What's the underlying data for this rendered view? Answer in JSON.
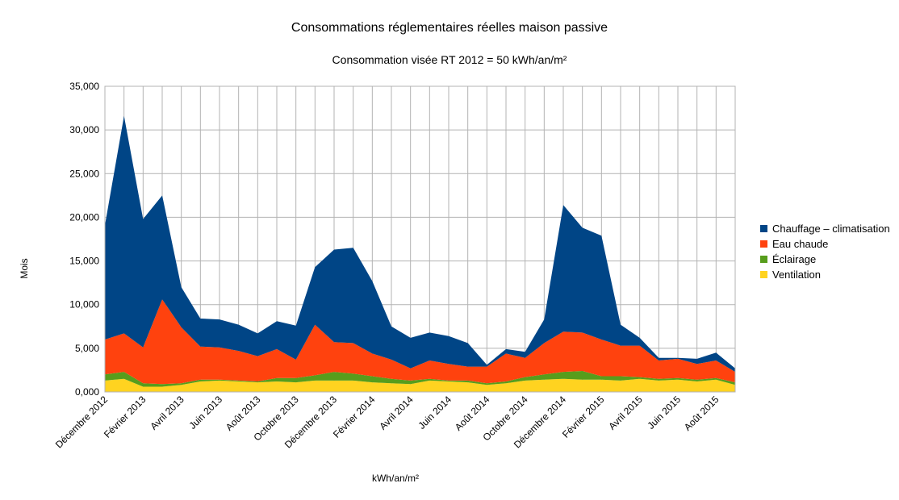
{
  "chart_data": {
    "type": "area",
    "stacked": true,
    "title": "Consommations réglementaires réelles maison passive",
    "subtitle": "Consommation visée RT 2012 = 50 kWh/an/m²",
    "xlabel": "kWh/an/m²",
    "ylabel": "Mois",
    "ylim": [
      0,
      35000
    ],
    "yticks": [
      "0,000",
      "5,000",
      "10,000",
      "15,000",
      "20,000",
      "25,000",
      "30,000",
      "35,000"
    ],
    "grid": true,
    "legend_position": "right",
    "x": [
      "Décembre 2012",
      "Janvier 2013",
      "Février 2013",
      "Mars 2013",
      "Avril 2013",
      "Mai 2013",
      "Juin 2013",
      "Juillet 2013",
      "Août 2013",
      "Septembre 2013",
      "Octobre 2013",
      "Novembre 2013",
      "Décembre 2013",
      "Janvier 2014",
      "Février 2014",
      "Mars 2014",
      "Avril 2014",
      "Mai 2014",
      "Juin 2014",
      "Juillet 2014",
      "Août 2014",
      "Septembre 2014",
      "Octobre 2014",
      "Novembre 2014",
      "Décembre 2014",
      "Janvier 2015",
      "Février 2015",
      "Mars 2015",
      "Avril 2015",
      "Mai 2015",
      "Juin 2015",
      "Juillet 2015",
      "Août 2015",
      "Septembre 2015"
    ],
    "xtick_labels": [
      "Décembre 2012",
      "Février 2013",
      "Avril 2013",
      "Juin 2013",
      "Août 2013",
      "Octobre 2013",
      "Décembre 2013",
      "Février 2014",
      "Avril 2014",
      "Juin 2014",
      "Août 2014",
      "Octobre 2014",
      "Décembre 2014",
      "Février 2015",
      "Avril 2015",
      "Juin 2015",
      "Août 2015"
    ],
    "series": [
      {
        "name": "Ventilation",
        "color": "#ffd320",
        "values": [
          1300,
          1500,
          600,
          600,
          800,
          1200,
          1300,
          1200,
          1100,
          1200,
          1100,
          1300,
          1300,
          1300,
          1100,
          1000,
          900,
          1300,
          1200,
          1100,
          800,
          1000,
          1300,
          1400,
          1500,
          1400,
          1400,
          1300,
          1500,
          1300,
          1400,
          1200,
          1400,
          800
        ]
      },
      {
        "name": "Éclairage",
        "color": "#579d1c",
        "values": [
          700,
          800,
          400,
          300,
          200,
          200,
          100,
          100,
          100,
          400,
          500,
          600,
          1000,
          800,
          700,
          500,
          400,
          200,
          100,
          200,
          200,
          200,
          400,
          600,
          800,
          1000,
          400,
          500,
          200,
          200,
          200,
          200,
          200,
          300
        ]
      },
      {
        "name": "Eau chaude",
        "color": "#ff420e",
        "values": [
          4000,
          4400,
          4100,
          9700,
          6400,
          3800,
          3700,
          3400,
          2900,
          3300,
          2100,
          5800,
          3400,
          3500,
          2600,
          2200,
          1400,
          2100,
          1900,
          1600,
          1900,
          3200,
          2200,
          3600,
          4600,
          4400,
          4200,
          3500,
          3600,
          2100,
          2200,
          1800,
          2000,
          1200
        ]
      },
      {
        "name": "Chauffage – climatisation",
        "color": "#004586",
        "values": [
          13100,
          24900,
          14700,
          11900,
          4600,
          3200,
          3200,
          3000,
          2600,
          3200,
          3900,
          6600,
          10600,
          10900,
          8300,
          3800,
          3500,
          3200,
          3200,
          2700,
          200,
          500,
          700,
          2700,
          14500,
          12000,
          11900,
          2400,
          900,
          300,
          100,
          600,
          900,
          400
        ]
      }
    ]
  }
}
